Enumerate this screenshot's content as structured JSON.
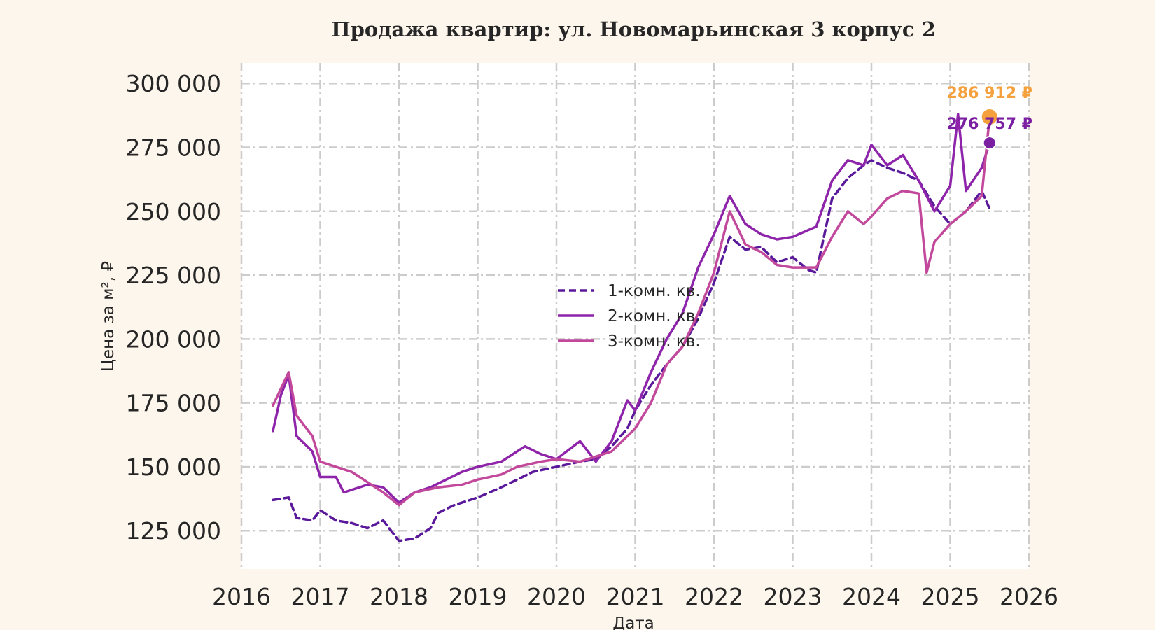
{
  "chart_data": {
    "type": "line",
    "title": "Продажа квартир: ул. Новомарьинская 3 корпус 2",
    "xlabel": "Дата",
    "ylabel": "Цена за м², ₽",
    "xlim": [
      2016,
      2026
    ],
    "ylim": [
      110000,
      308000
    ],
    "x_ticks": [
      "2016",
      "2017",
      "2018",
      "2019",
      "2020",
      "2021",
      "2022",
      "2023",
      "2024",
      "2025",
      "2026"
    ],
    "y_ticks": [
      {
        "value": 125000,
        "label": "125 000"
      },
      {
        "value": 150000,
        "label": "150 000"
      },
      {
        "value": 175000,
        "label": "175 000"
      },
      {
        "value": 200000,
        "label": "200 000"
      },
      {
        "value": 225000,
        "label": "225 000"
      },
      {
        "value": 250000,
        "label": "250 000"
      },
      {
        "value": 275000,
        "label": "275 000"
      },
      {
        "value": 300000,
        "label": "300 000"
      }
    ],
    "grid": true,
    "legend_position": "center",
    "series": [
      {
        "name": "1-комн. кв.",
        "color": "#5a189a",
        "dash": true,
        "x": [
          2016.4,
          2016.6,
          2016.7,
          2016.9,
          2017.0,
          2017.2,
          2017.4,
          2017.6,
          2017.8,
          2018.0,
          2018.2,
          2018.4,
          2018.5,
          2018.7,
          2019.0,
          2019.3,
          2019.5,
          2019.7,
          2020.0,
          2020.3,
          2020.5,
          2020.7,
          2020.9,
          2021.0,
          2021.2,
          2021.4,
          2021.6,
          2021.8,
          2022.0,
          2022.2,
          2022.4,
          2022.6,
          2022.8,
          2023.0,
          2023.2,
          2023.3,
          2023.5,
          2023.7,
          2023.9,
          2024.0,
          2024.2,
          2024.4,
          2024.6,
          2024.8,
          2025.0,
          2025.2,
          2025.4,
          2025.5
        ],
        "y": [
          137000,
          138000,
          130000,
          129000,
          133000,
          129000,
          128000,
          126000,
          129000,
          121000,
          122000,
          126000,
          132000,
          135000,
          138000,
          142000,
          145000,
          148000,
          150000,
          152000,
          153000,
          158000,
          165000,
          172000,
          182000,
          190000,
          197000,
          208000,
          222000,
          240000,
          235000,
          236000,
          230000,
          232000,
          227000,
          226000,
          255000,
          263000,
          268000,
          270000,
          267000,
          265000,
          262000,
          252000,
          245000,
          250000,
          258000,
          251000
        ]
      },
      {
        "name": "2-комн. кв.",
        "color": "#8e24aa",
        "dash": false,
        "x": [
          2016.4,
          2016.5,
          2016.6,
          2016.7,
          2016.9,
          2017.0,
          2017.2,
          2017.3,
          2017.6,
          2017.8,
          2018.0,
          2018.2,
          2018.4,
          2018.6,
          2018.8,
          2019.0,
          2019.3,
          2019.6,
          2019.8,
          2020.0,
          2020.3,
          2020.5,
          2020.7,
          2020.9,
          2021.0,
          2021.2,
          2021.4,
          2021.6,
          2021.8,
          2022.0,
          2022.2,
          2022.4,
          2022.6,
          2022.8,
          2023.0,
          2023.3,
          2023.5,
          2023.7,
          2023.9,
          2024.0,
          2024.2,
          2024.4,
          2024.6,
          2024.8,
          2025.0,
          2025.1,
          2025.2,
          2025.4,
          2025.5
        ],
        "y": [
          164000,
          178000,
          186000,
          162000,
          156000,
          146000,
          146000,
          140000,
          143000,
          142000,
          136000,
          140000,
          142000,
          145000,
          148000,
          150000,
          152000,
          158000,
          155000,
          153000,
          160000,
          152000,
          160000,
          176000,
          172000,
          187000,
          200000,
          210000,
          228000,
          241000,
          256000,
          245000,
          241000,
          239000,
          240000,
          244000,
          262000,
          270000,
          268000,
          276000,
          268000,
          272000,
          262000,
          250000,
          260000,
          288000,
          258000,
          267000,
          276757
        ]
      },
      {
        "name": "3-комн. кв.",
        "color": "#c2489b",
        "dash": false,
        "x": [
          2016.4,
          2016.6,
          2016.7,
          2016.9,
          2017.0,
          2017.2,
          2017.4,
          2017.6,
          2017.8,
          2018.0,
          2018.2,
          2018.5,
          2018.8,
          2019.0,
          2019.3,
          2019.5,
          2019.8,
          2020.0,
          2020.3,
          2020.5,
          2020.7,
          2020.9,
          2021.0,
          2021.2,
          2021.4,
          2021.6,
          2021.8,
          2022.0,
          2022.2,
          2022.4,
          2022.6,
          2022.8,
          2023.0,
          2023.3,
          2023.5,
          2023.7,
          2023.9,
          2024.0,
          2024.2,
          2024.4,
          2024.6,
          2024.7,
          2024.8,
          2025.0,
          2025.2,
          2025.4,
          2025.5
        ],
        "y": [
          174000,
          187000,
          170000,
          162000,
          152000,
          150000,
          148000,
          144000,
          140000,
          135000,
          140000,
          142000,
          143000,
          145000,
          147000,
          150000,
          152000,
          153000,
          152000,
          154000,
          156000,
          162000,
          165000,
          175000,
          190000,
          197000,
          210000,
          226000,
          250000,
          237000,
          234000,
          229000,
          228000,
          228000,
          240000,
          250000,
          245000,
          248000,
          255000,
          258000,
          257000,
          226000,
          238000,
          245000,
          250000,
          256000,
          286912
        ]
      }
    ],
    "end_labels": [
      {
        "series": "3-комн. кв.",
        "text": "286 912 ₽",
        "color": "#f4a03c"
      },
      {
        "series": "2-комн. кв.",
        "text": "276 757 ₽",
        "color": "#7b1fa2"
      }
    ]
  }
}
